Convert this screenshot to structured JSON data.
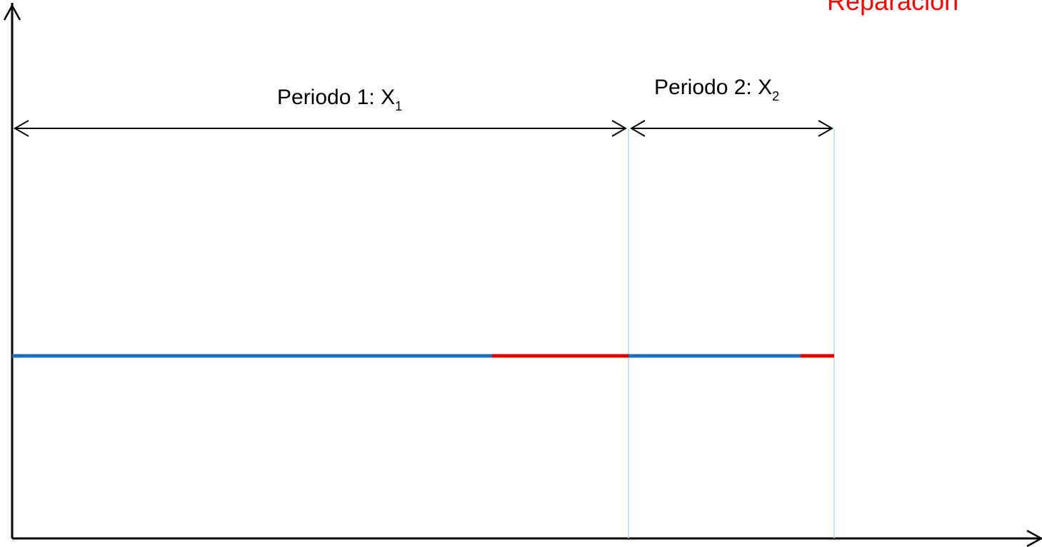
{
  "labels": {
    "reparacion": "Reparación",
    "period1_prefix": "Periodo 1: X",
    "period1_sub": "1",
    "period2_prefix": "Periodo 2: X",
    "period2_sub": "2"
  },
  "colors": {
    "axis": "#000000",
    "operating": "#1f6fb8",
    "repair": "#e00000",
    "boundary": "#a8d8e8",
    "reparacion_label": "#ff0000"
  },
  "timeline": {
    "segments": [
      {
        "state": "operating",
        "color": "#1f6fb8"
      },
      {
        "state": "repair",
        "color": "#e00000"
      },
      {
        "state": "operating",
        "color": "#1f6fb8"
      },
      {
        "state": "repair",
        "color": "#e00000"
      }
    ]
  }
}
